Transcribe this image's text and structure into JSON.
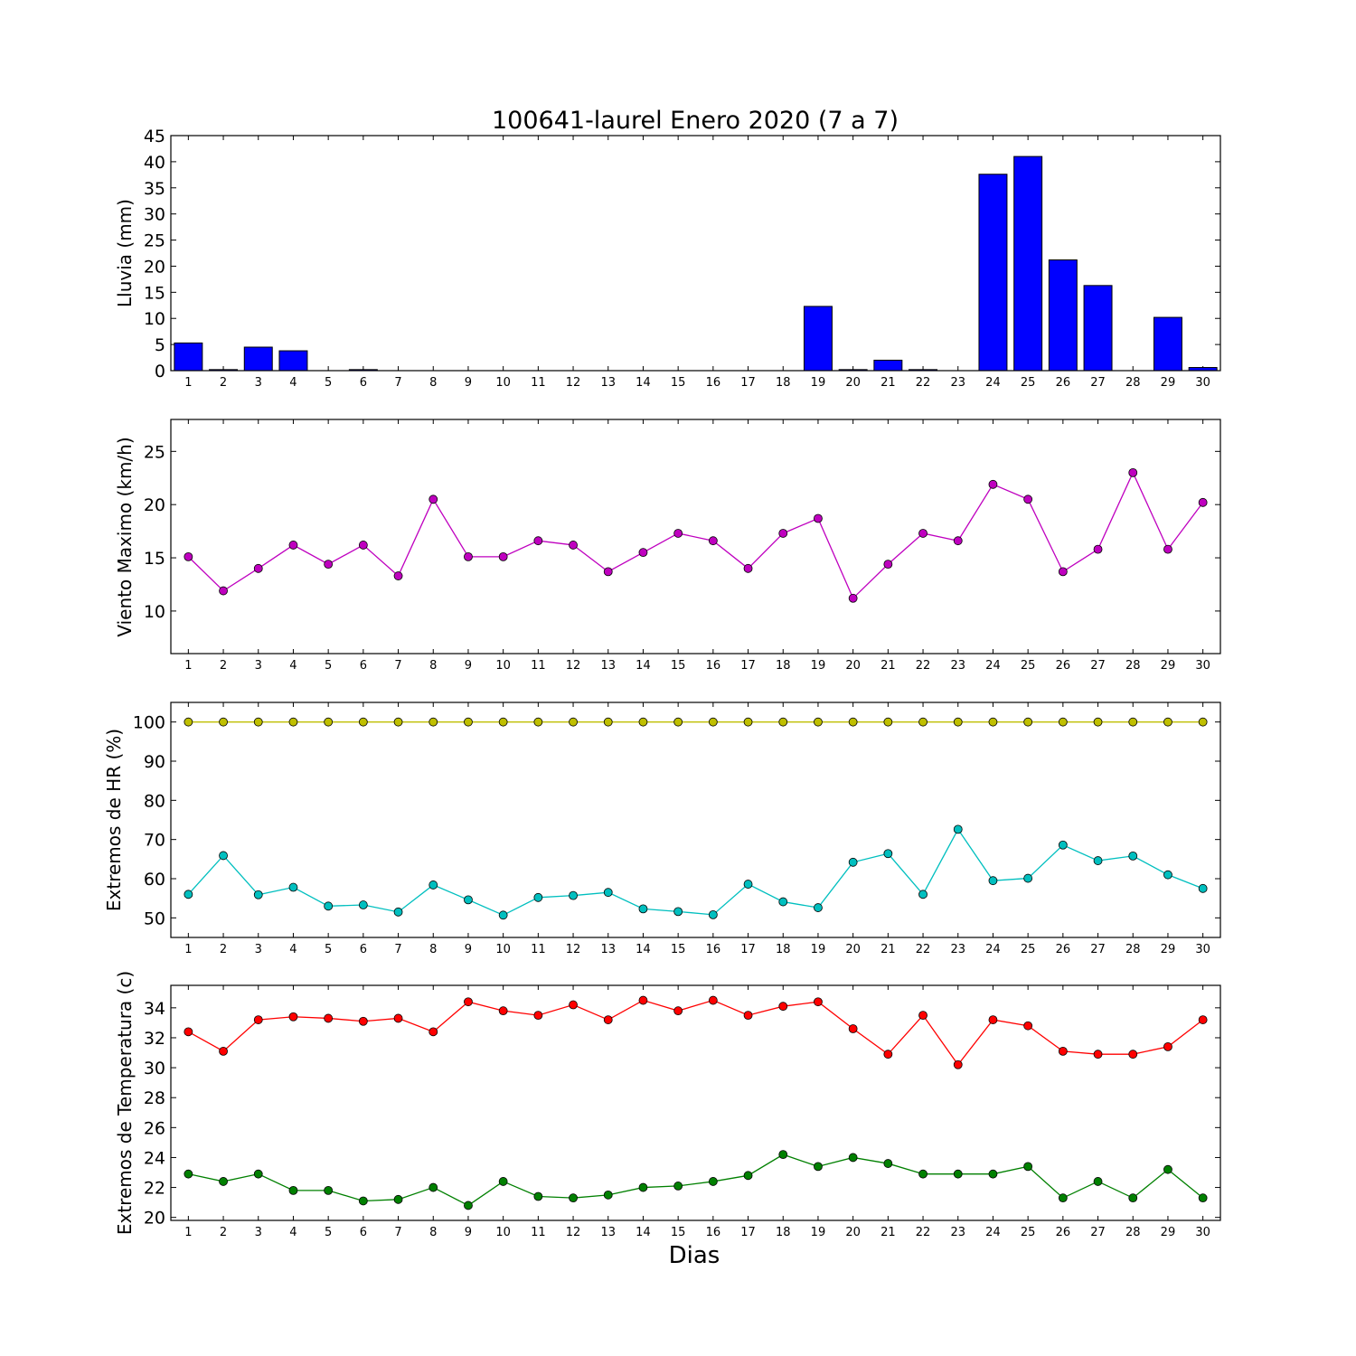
{
  "chart_data": [
    {
      "type": "bar",
      "title": "100641-laurel Enero 2020  (7 a 7)",
      "ylabel": "Lluvia (mm)",
      "xlabel": "",
      "ylim": [
        0,
        45
      ],
      "yticks": [
        "0",
        "5",
        "10",
        "15",
        "20",
        "25",
        "30",
        "35",
        "40",
        "45"
      ],
      "x": [
        1,
        2,
        3,
        4,
        5,
        6,
        7,
        8,
        9,
        10,
        11,
        12,
        13,
        14,
        15,
        16,
        17,
        18,
        19,
        20,
        21,
        22,
        23,
        24,
        25,
        26,
        27,
        28,
        29,
        30
      ],
      "series": [
        {
          "values": [
            5.3,
            0.2,
            4.5,
            3.8,
            0,
            0.2,
            0,
            0,
            0,
            0,
            0,
            0,
            0,
            0,
            0,
            0,
            0,
            0,
            12.3,
            0.2,
            2.0,
            0.2,
            0,
            37.6,
            41.0,
            21.2,
            16.3,
            0,
            10.2,
            0.6
          ],
          "color": "#0000ff"
        }
      ]
    },
    {
      "type": "line",
      "title": "",
      "ylabel": "Viento Maximo (km/h)",
      "xlabel": "",
      "ylim": [
        6,
        28
      ],
      "yticks": [
        "10",
        "15",
        "20",
        "25"
      ],
      "x": [
        1,
        2,
        3,
        4,
        5,
        6,
        7,
        8,
        9,
        10,
        11,
        12,
        13,
        14,
        15,
        16,
        17,
        18,
        19,
        20,
        21,
        22,
        23,
        24,
        25,
        26,
        27,
        28,
        29,
        30
      ],
      "series": [
        {
          "values": [
            15.1,
            11.9,
            14.0,
            16.2,
            14.4,
            16.2,
            13.3,
            20.5,
            15.1,
            15.1,
            16.6,
            16.2,
            13.7,
            15.5,
            17.3,
            16.6,
            14.0,
            17.3,
            18.7,
            11.2,
            14.4,
            17.3,
            16.6,
            21.9,
            20.5,
            13.7,
            15.8,
            23.0,
            15.8,
            20.2
          ],
          "color": "#bf00bf"
        }
      ]
    },
    {
      "type": "line",
      "title": "",
      "ylabel": "Extremos de HR (%)",
      "xlabel": "",
      "ylim": [
        45,
        105
      ],
      "yticks": [
        "50",
        "60",
        "70",
        "80",
        "90",
        "100"
      ],
      "x": [
        1,
        2,
        3,
        4,
        5,
        6,
        7,
        8,
        9,
        10,
        11,
        12,
        13,
        14,
        15,
        16,
        17,
        18,
        19,
        20,
        21,
        22,
        23,
        24,
        25,
        26,
        27,
        28,
        29,
        30
      ],
      "series": [
        {
          "values": [
            100,
            100,
            100,
            100,
            100,
            100,
            100,
            100,
            100,
            100,
            100,
            100,
            100,
            100,
            100,
            100,
            100,
            100,
            100,
            100,
            100,
            100,
            100,
            100,
            100,
            100,
            100,
            100,
            100,
            100
          ],
          "color": "#bfbf00"
        },
        {
          "values": [
            56.0,
            65.9,
            55.9,
            57.8,
            53.0,
            53.3,
            51.5,
            58.4,
            54.6,
            50.7,
            55.2,
            55.7,
            56.5,
            52.3,
            51.6,
            50.8,
            58.6,
            54.1,
            52.6,
            64.2,
            66.4,
            56.0,
            72.6,
            59.5,
            60.1,
            68.6,
            64.6,
            65.8,
            61.0,
            57.5
          ],
          "color": "#00bfbf"
        }
      ]
    },
    {
      "type": "line",
      "title": "",
      "ylabel": "Extremos de Temperatura (c)",
      "xlabel": "Dias",
      "ylim": [
        19.8,
        35.5
      ],
      "yticks": [
        "20",
        "22",
        "24",
        "26",
        "28",
        "30",
        "32",
        "34"
      ],
      "x": [
        1,
        2,
        3,
        4,
        5,
        6,
        7,
        8,
        9,
        10,
        11,
        12,
        13,
        14,
        15,
        16,
        17,
        18,
        19,
        20,
        21,
        22,
        23,
        24,
        25,
        26,
        27,
        28,
        29,
        30
      ],
      "series": [
        {
          "values": [
            32.4,
            31.1,
            33.2,
            33.4,
            33.3,
            33.1,
            33.3,
            32.4,
            34.4,
            33.8,
            33.5,
            34.2,
            33.2,
            34.5,
            33.8,
            34.5,
            33.5,
            34.1,
            34.4,
            32.6,
            30.9,
            33.5,
            30.2,
            33.2,
            32.8,
            31.1,
            30.9,
            30.9,
            31.4,
            33.2
          ],
          "color": "#ff0000"
        },
        {
          "values": [
            22.9,
            22.4,
            22.9,
            21.8,
            21.8,
            21.1,
            21.2,
            22.0,
            20.8,
            22.4,
            21.4,
            21.3,
            21.5,
            22.0,
            22.1,
            22.4,
            22.8,
            24.2,
            23.4,
            24.0,
            23.6,
            22.9,
            22.9,
            22.9,
            23.4,
            21.3,
            22.4,
            21.3,
            23.2,
            21.3
          ],
          "color": "#008000"
        }
      ]
    }
  ]
}
